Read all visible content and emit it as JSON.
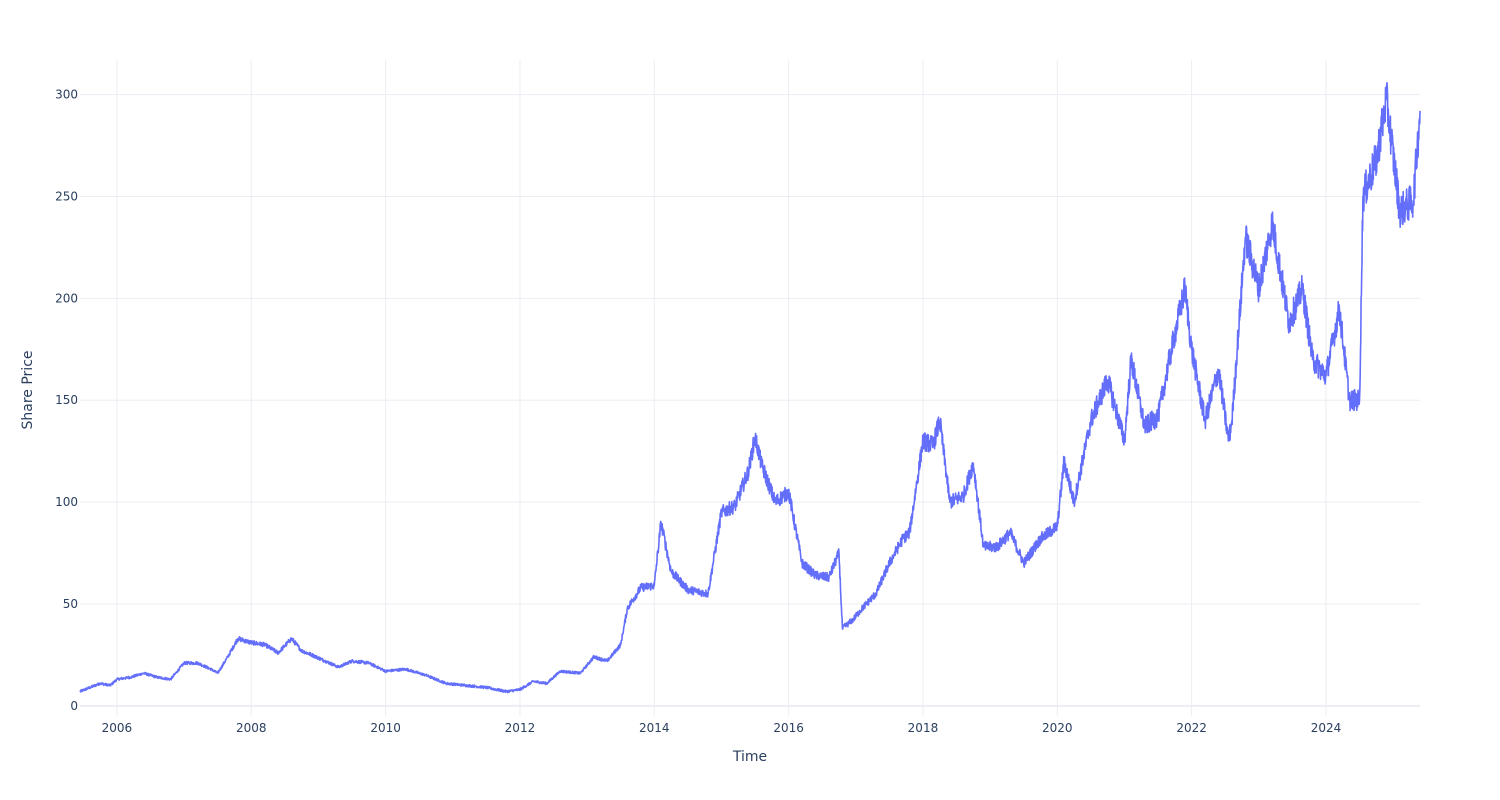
{
  "chart_data": {
    "type": "line",
    "xlabel": "Time",
    "ylabel": "Share Price",
    "x_range": [
      2005.45,
      2025.4
    ],
    "ylim": [
      -5,
      317
    ],
    "x_ticks": [
      2006,
      2008,
      2010,
      2012,
      2014,
      2016,
      2018,
      2020,
      2022,
      2024
    ],
    "y_ticks": [
      0,
      50,
      100,
      150,
      200,
      250,
      300
    ],
    "grid": true,
    "legend": "none",
    "line_color": "#636efa",
    "series": [
      {
        "x": [
          2005.45,
          2005.6,
          2005.75,
          2005.9,
          2006.0,
          2006.2,
          2006.4,
          2006.6,
          2006.8,
          2007.0,
          2007.2,
          2007.4,
          2007.5,
          2007.65,
          2007.8,
          2008.0,
          2008.2,
          2008.4,
          2008.6,
          2008.75,
          2008.9,
          2009.1,
          2009.3,
          2009.5,
          2009.75,
          2010.0,
          2010.3,
          2010.6,
          2010.9,
          2011.2,
          2011.5,
          2011.8,
          2012.0,
          2012.2,
          2012.4,
          2012.6,
          2012.9,
          2013.1,
          2013.3,
          2013.5,
          2013.6,
          2013.8,
          2014.0,
          2014.1,
          2014.25,
          2014.5,
          2014.8,
          2015.0,
          2015.2,
          2015.4,
          2015.5,
          2015.6,
          2015.8,
          2016.0,
          2016.2,
          2016.4,
          2016.6,
          2016.75,
          2016.8,
          2016.95,
          2017.1,
          2017.3,
          2017.5,
          2017.7,
          2017.8,
          2018.0,
          2018.15,
          2018.25,
          2018.4,
          2018.6,
          2018.75,
          2018.9,
          2019.1,
          2019.3,
          2019.5,
          2019.75,
          2020.0,
          2020.1,
          2020.25,
          2020.5,
          2020.75,
          2021.0,
          2021.1,
          2021.3,
          2021.5,
          2021.7,
          2021.9,
          2022.0,
          2022.2,
          2022.4,
          2022.55,
          2022.6,
          2022.8,
          2023.0,
          2023.2,
          2023.45,
          2023.65,
          2023.8,
          2024.0,
          2024.2,
          2024.35,
          2024.5,
          2024.55,
          2024.75,
          2024.9,
          2025.1,
          2025.3,
          2025.4
        ],
        "values": [
          7,
          9,
          11,
          10,
          13,
          14,
          16,
          14,
          13,
          21,
          21,
          18,
          16,
          24,
          33,
          31,
          30,
          26,
          33,
          27,
          25,
          22,
          19,
          22,
          21,
          17,
          18,
          15,
          11,
          10,
          9,
          7,
          8,
          12,
          11,
          17,
          16,
          24,
          22,
          30,
          48,
          58,
          59,
          90,
          66,
          57,
          55,
          95,
          98,
          115,
          132,
          118,
          100,
          105,
          70,
          64,
          63,
          75,
          38,
          42,
          48,
          55,
          70,
          82,
          85,
          130,
          128,
          140,
          100,
          103,
          119,
          78,
          78,
          85,
          70,
          82,
          88,
          120,
          100,
          140,
          160,
          130,
          170,
          137,
          142,
          175,
          205,
          175,
          140,
          165,
          130,
          140,
          230,
          205,
          237,
          188,
          205,
          170,
          162,
          195,
          150,
          150,
          250,
          268,
          298,
          243,
          248,
          292
        ]
      }
    ]
  }
}
